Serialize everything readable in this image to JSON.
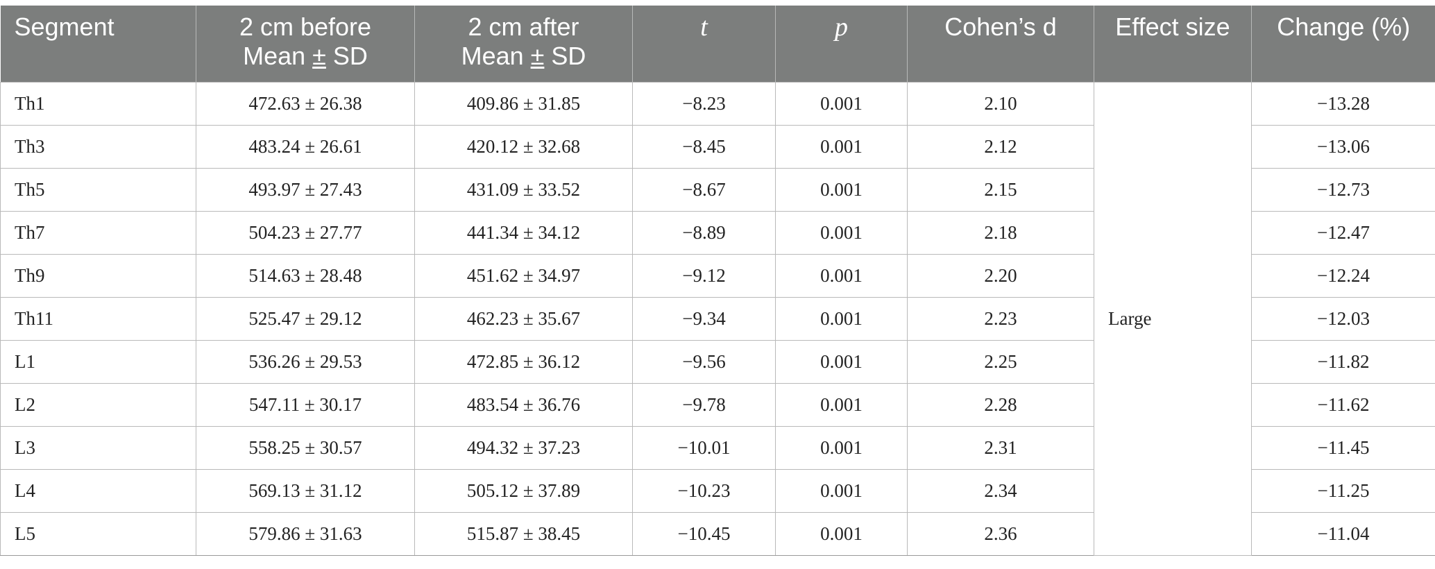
{
  "table": {
    "headers": {
      "segment": "Segment",
      "before_line1": "2 cm before",
      "before_line2_a": "Mean ",
      "before_line2_pm": "±",
      "before_line2_b": " SD",
      "after_line1": "2 cm after",
      "after_line2_a": "Mean ",
      "after_line2_pm": "±",
      "after_line2_b": " SD",
      "t": "t",
      "p": "p",
      "cohens_d": "Cohen’s d",
      "effect_size": "Effect size",
      "change": "Change (%)"
    },
    "effect_size_value": "Large",
    "rows": [
      {
        "segment": "Th1",
        "before": "472.63 ± 26.38",
        "after": "409.86 ± 31.85",
        "t": "−8.23",
        "p": "0.001",
        "d": "2.10",
        "change": "−13.28"
      },
      {
        "segment": "Th3",
        "before": "483.24 ± 26.61",
        "after": "420.12 ± 32.68",
        "t": "−8.45",
        "p": "0.001",
        "d": "2.12",
        "change": "−13.06"
      },
      {
        "segment": "Th5",
        "before": "493.97 ± 27.43",
        "after": "431.09 ± 33.52",
        "t": "−8.67",
        "p": "0.001",
        "d": "2.15",
        "change": "−12.73"
      },
      {
        "segment": "Th7",
        "before": "504.23 ± 27.77",
        "after": "441.34 ± 34.12",
        "t": "−8.89",
        "p": "0.001",
        "d": "2.18",
        "change": "−12.47"
      },
      {
        "segment": "Th9",
        "before": "514.63 ± 28.48",
        "after": "451.62 ± 34.97",
        "t": "−9.12",
        "p": "0.001",
        "d": "2.20",
        "change": "−12.24"
      },
      {
        "segment": "Th11",
        "before": "525.47 ± 29.12",
        "after": "462.23 ± 35.67",
        "t": "−9.34",
        "p": "0.001",
        "d": "2.23",
        "change": "−12.03"
      },
      {
        "segment": "L1",
        "before": "536.26 ± 29.53",
        "after": "472.85 ± 36.12",
        "t": "−9.56",
        "p": "0.001",
        "d": "2.25",
        "change": "−11.82"
      },
      {
        "segment": "L2",
        "before": "547.11 ± 30.17",
        "after": "483.54 ± 36.76",
        "t": "−9.78",
        "p": "0.001",
        "d": "2.28",
        "change": "−11.62"
      },
      {
        "segment": "L3",
        "before": "558.25 ± 30.57",
        "after": "494.32 ± 37.23",
        "t": "−10.01",
        "p": "0.001",
        "d": "2.31",
        "change": "−11.45"
      },
      {
        "segment": "L4",
        "before": "569.13 ± 31.12",
        "after": "505.12 ± 37.89",
        "t": "−10.23",
        "p": "0.001",
        "d": "2.34",
        "change": "−11.25"
      },
      {
        "segment": "L5",
        "before": "579.86 ± 31.63",
        "after": "515.87 ± 38.45",
        "t": "−10.45",
        "p": "0.001",
        "d": "2.36",
        "change": "−11.04"
      }
    ]
  },
  "colors": {
    "header_bg": "#7c7e7d",
    "header_text": "#ffffff",
    "grid": "#b9b9b9"
  }
}
